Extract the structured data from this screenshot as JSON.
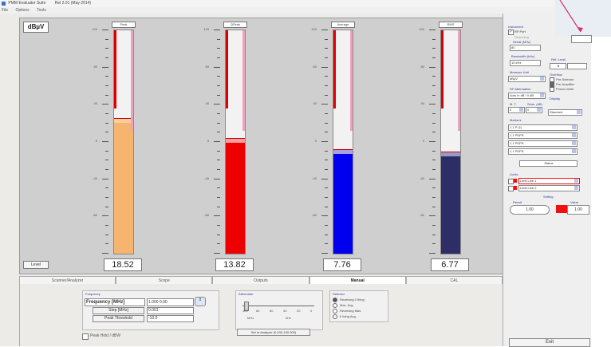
{
  "window": {
    "title": "PMM Evaluator Suite",
    "version": "Rel 2.01 (May 2014)"
  },
  "menu": [
    "File",
    "Options",
    "Tools"
  ],
  "meters_panel": {
    "unit": "dBµV",
    "level_button": "Level",
    "scale_labels": [
      "120",
      "80",
      "40",
      "0",
      "-40",
      "-80"
    ],
    "meters": [
      {
        "name": "Peak",
        "readout": "18.52",
        "fill_color": "#f6b46e",
        "cap_color": "#f9cf9d",
        "fill_fraction": 0.585,
        "peak_fraction": 0.605
      },
      {
        "name": "QPeak",
        "readout": "13.82",
        "fill_color": "#ee0000",
        "cap_color": "#f4a0a0",
        "fill_fraction": 0.495,
        "peak_fraction": 0.515
      },
      {
        "name": "Average",
        "readout": "7.76",
        "fill_color": "#0000ee",
        "cap_color": "#a8a0e0",
        "fill_fraction": 0.445,
        "peak_fraction": 0.465
      },
      {
        "name": "RMS",
        "readout": "6.77",
        "fill_color": "#2e2e66",
        "cap_color": "#9a9ac8",
        "fill_fraction": 0.435,
        "peak_fraction": 0.455
      }
    ]
  },
  "tabs": [
    {
      "label": "Scanner/Analyzer",
      "active": false
    },
    {
      "label": "Scope",
      "active": false
    },
    {
      "label": "Outputs",
      "active": false
    },
    {
      "label": "Manual",
      "active": true
    },
    {
      "label": "CAL",
      "active": false
    }
  ],
  "manual_tab": {
    "frequency_group_label": "Frequency",
    "frequency_label": "Frequency [MHz]",
    "frequency_value": "1.000 0.00",
    "step_mhz_label": "Step [MHz]",
    "step_mhz_value": "0.001",
    "peak_threshold_label": "Peak Threshold",
    "peak_threshold_value": "-10.0",
    "attenuator_label": "Attenuator",
    "slider_scale": [
      "100",
      "80",
      "60",
      "40",
      "20",
      "0"
    ],
    "slider_low": "MHz",
    "slider_high": "kHz",
    "set_analyzer_label": "Set to Analyzer (0.100-100.000)",
    "detector_group_label": "Detector",
    "detector_options": [
      "Receiving 0 thing",
      "Max. Avg.",
      "Receiving Max.",
      "0 thing Avg."
    ],
    "peak_hold_label": "Peak Hold / dBW"
  },
  "right_panel": {
    "instrument_label": "Instrument",
    "rf_port_label": "RF Port",
    "rf_port_checked": true,
    "sync_status": "Searching",
    "serial_label": "Serial (MHz)",
    "serial_value": "80",
    "bandwidth_label": "Bandwidth (kHz)",
    "bandwidth_value": "10 kHz",
    "measure_unit_label": "Measure Unit",
    "measure_unit_value": "dBµV",
    "rf_att_label": "RF Attenuation",
    "rf_att_value": "Auto in dB / 0 dB",
    "mt_label": "M. T.",
    "mt_value": "0",
    "sensitivity_label": "Sens. (dB)",
    "sensitivity_value": "0",
    "reference_label": "Ref. Level",
    "reference_value": "0",
    "overflow_label": "Overflow",
    "overflow_options": [
      "Pre-Selector",
      "Pre-Amplifier",
      "Proba Limits"
    ],
    "overflow_checked": [
      false,
      true,
      false
    ],
    "display_label": "Display",
    "display_value": "Standard",
    "markers_label": "Markers",
    "marker_values": [
      "1.1 P (1)",
      "1.1 PDFR",
      "1.1 PDFR",
      "1.1 PDFR"
    ],
    "marker_status_label": "Status",
    "limits_label": "Limits",
    "limit_values": [
      "Limit Line 1",
      "Limit Line 2"
    ],
    "settings_label": "Setting",
    "result_label": "Result",
    "value_label": "Value",
    "result_value": "1.00",
    "value_value": "1.00",
    "exit_label": "Exit"
  },
  "callout": {
    "color": "#d6336c"
  }
}
